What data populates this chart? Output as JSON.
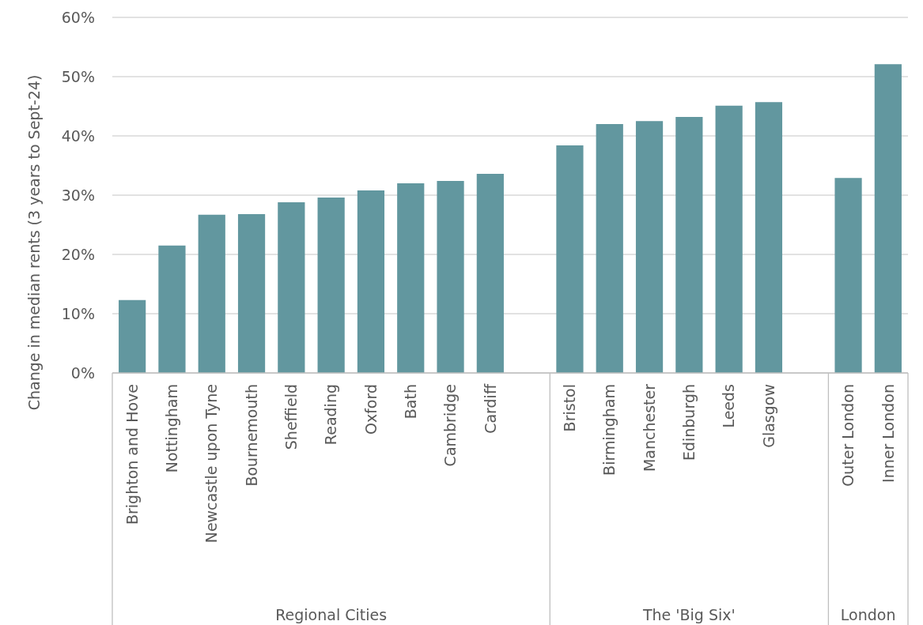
{
  "chart_data": {
    "type": "bar",
    "ylabel": "Change in median rents (3 years to Sept-24)",
    "categories": [
      "Brighton and Hove",
      "Nottingham",
      "Newcastle upon Tyne",
      "Bournemouth",
      "Sheffield",
      "Reading",
      "Oxford",
      "Bath",
      "Cambridge",
      "Cardiff",
      null,
      "Bristol",
      "Birmingham",
      "Manchester",
      "Edinburgh",
      "Leeds",
      "Glasgow",
      null,
      "Outer London",
      "Inner London"
    ],
    "values": [
      12.3,
      21.5,
      26.7,
      26.8,
      28.8,
      29.6,
      30.8,
      32.0,
      32.4,
      33.6,
      null,
      38.4,
      42.0,
      42.5,
      43.2,
      45.1,
      45.7,
      null,
      32.9,
      52.1
    ],
    "color": "#62979f",
    "ylim": [
      0,
      60
    ],
    "yticks": [
      {
        "value": 0,
        "label": "0%"
      },
      {
        "value": 10,
        "label": "10%"
      },
      {
        "value": 20,
        "label": "20%"
      },
      {
        "value": 30,
        "label": "30%"
      },
      {
        "value": 40,
        "label": "40%"
      },
      {
        "value": 50,
        "label": "50%"
      },
      {
        "value": 60,
        "label": "60%"
      }
    ],
    "grid": "y",
    "annotations": [
      "Regional Cities",
      "The 'Big Six'",
      "London"
    ]
  }
}
